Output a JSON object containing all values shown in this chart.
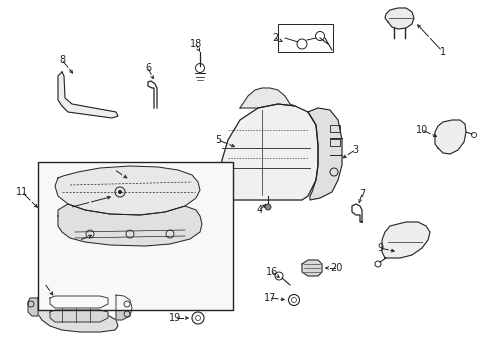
{
  "bg_color": "#ffffff",
  "fig_width": 4.89,
  "fig_height": 3.6,
  "dpi": 100,
  "lc": "#222222",
  "fs": 7.0
}
